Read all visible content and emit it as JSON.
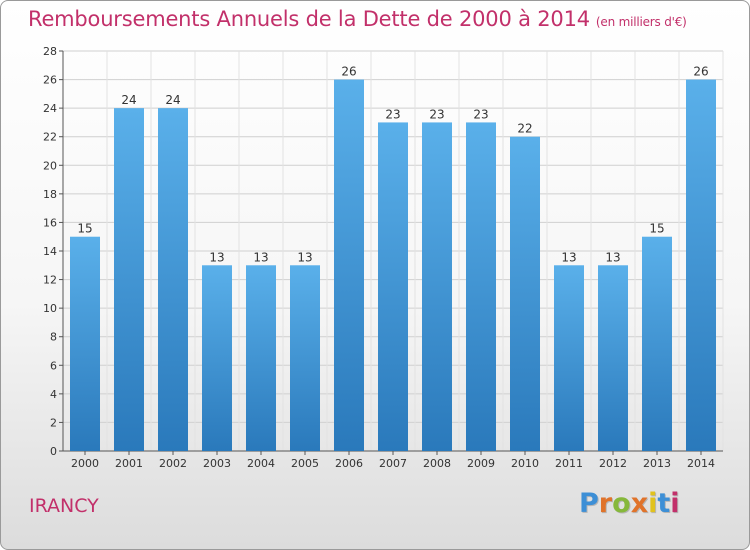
{
  "header": {
    "title": "Remboursements Annuels de la Dette de 2000 à 2014",
    "unit": "(en milliers d'€)"
  },
  "footer": {
    "commune": "IRANCY",
    "logo_letters": [
      "P",
      "r",
      "o",
      "x",
      "i",
      "t",
      "i"
    ]
  },
  "colors": {
    "title": "#c2306a",
    "bar_light": "#5ab0ea",
    "bar_dark": "#2a79bb",
    "logo": [
      "#3d8fd6",
      "#e0732a",
      "#86b83b",
      "#e0732a",
      "#e1c21e",
      "#3d8fd6",
      "#c2306a"
    ]
  },
  "chart_data": {
    "type": "bar",
    "categories": [
      "2000",
      "2001",
      "2002",
      "2003",
      "2004",
      "2005",
      "2006",
      "2007",
      "2008",
      "2009",
      "2010",
      "2011",
      "2012",
      "2013",
      "2014"
    ],
    "values": [
      15,
      24,
      24,
      13,
      13,
      13,
      26,
      23,
      23,
      23,
      22,
      13,
      13,
      15,
      26
    ],
    "ylim": [
      0,
      28
    ],
    "yticks": [
      0,
      2,
      4,
      6,
      8,
      10,
      12,
      14,
      16,
      18,
      20,
      22,
      24,
      26,
      28
    ],
    "grid": true,
    "legend": "none"
  }
}
